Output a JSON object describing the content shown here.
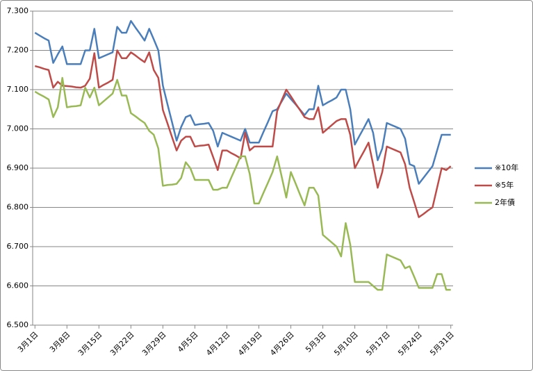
{
  "chart_data": {
    "type": "line",
    "categories": [
      "3月1日",
      null,
      null,
      null,
      null,
      null,
      null,
      "3月8日",
      null,
      null,
      null,
      null,
      null,
      null,
      "3月15日",
      null,
      null,
      null,
      null,
      null,
      null,
      "3月22日",
      null,
      null,
      null,
      null,
      null,
      null,
      "3月29日",
      null,
      null,
      null,
      null,
      null,
      null,
      "4月5日",
      null,
      null,
      null,
      null,
      null,
      null,
      "4月12日",
      null,
      null,
      null,
      null,
      null,
      null,
      "4月19日",
      null,
      null,
      null,
      null,
      null,
      null,
      "4月26日",
      null,
      null,
      null,
      null,
      null,
      null,
      "5月3日",
      null,
      null,
      null,
      null,
      null,
      null,
      "5月10日",
      null,
      null,
      null,
      null,
      null,
      null,
      "5月17日",
      null,
      null,
      null,
      null,
      null,
      null,
      "5月24日",
      null,
      null,
      null,
      null,
      null,
      null,
      "5月31日"
    ],
    "series": [
      {
        "name": "※10年",
        "color": "#4a7ebb",
        "values": [
          7.245,
          7.238,
          7.231,
          7.225,
          7.168,
          7.19,
          7.21,
          7.165,
          7.165,
          7.165,
          7.165,
          7.2,
          7.2,
          7.255,
          7.18,
          7.185,
          7.19,
          7.195,
          7.26,
          7.245,
          7.245,
          7.275,
          7.258,
          7.242,
          7.225,
          7.255,
          7.228,
          7.2,
          7.11,
          7.063,
          7.017,
          6.97,
          7.005,
          7.03,
          7.035,
          7.01,
          7.012,
          7.013,
          7.015,
          6.995,
          6.955,
          6.99,
          6.985,
          6.98,
          6.975,
          6.97,
          7.0,
          6.965,
          6.965,
          6.965,
          6.992,
          7.018,
          7.045,
          7.05,
          7.07,
          7.09,
          7.076,
          7.063,
          7.049,
          7.035,
          7.05,
          7.05,
          7.11,
          7.06,
          7.067,
          7.073,
          7.08,
          7.1,
          7.1,
          7.05,
          6.96,
          6.982,
          7.003,
          7.025,
          6.99,
          6.92,
          6.95,
          7.015,
          7.01,
          7.005,
          7.0,
          6.975,
          6.91,
          6.905,
          6.86,
          6.875,
          6.89,
          6.905,
          6.945,
          6.985,
          6.985,
          6.985
        ]
      },
      {
        "name": "※5年",
        "color": "#be4b48",
        "values": [
          7.16,
          7.157,
          7.153,
          7.15,
          7.105,
          7.12,
          7.11,
          7.109,
          7.108,
          7.106,
          7.105,
          7.11,
          7.128,
          7.193,
          7.105,
          7.112,
          7.118,
          7.125,
          7.2,
          7.18,
          7.18,
          7.195,
          7.187,
          7.178,
          7.17,
          7.195,
          7.15,
          7.13,
          7.048,
          7.014,
          6.979,
          6.945,
          6.97,
          6.98,
          6.98,
          6.955,
          6.957,
          6.958,
          6.96,
          6.928,
          6.895,
          6.945,
          6.945,
          6.938,
          6.932,
          6.925,
          6.99,
          6.945,
          6.955,
          6.955,
          6.955,
          6.955,
          6.955,
          7.045,
          7.073,
          7.1,
          7.083,
          7.065,
          7.048,
          7.03,
          7.025,
          7.025,
          7.055,
          6.99,
          7.0,
          7.01,
          7.02,
          7.025,
          7.025,
          6.985,
          6.9,
          6.922,
          6.943,
          6.965,
          6.91,
          6.85,
          6.89,
          6.955,
          6.95,
          6.945,
          6.94,
          6.91,
          6.85,
          6.813,
          6.775,
          6.783,
          6.792,
          6.8,
          6.85,
          6.9,
          6.895,
          6.905
        ]
      },
      {
        "name": "2年債",
        "color": "#98b954",
        "values": [
          7.095,
          7.088,
          7.082,
          7.075,
          7.03,
          7.055,
          7.13,
          7.055,
          7.057,
          7.058,
          7.06,
          7.105,
          7.08,
          7.105,
          7.06,
          7.07,
          7.08,
          7.09,
          7.125,
          7.085,
          7.085,
          7.04,
          7.032,
          7.023,
          7.015,
          6.995,
          6.985,
          6.95,
          6.855,
          6.857,
          6.858,
          6.86,
          6.875,
          6.915,
          6.9,
          6.87,
          6.87,
          6.87,
          6.87,
          6.845,
          6.845,
          6.85,
          6.85,
          6.877,
          6.903,
          6.93,
          6.93,
          6.885,
          6.81,
          6.81,
          6.837,
          6.863,
          6.89,
          6.93,
          6.878,
          6.825,
          6.89,
          6.862,
          6.833,
          6.805,
          6.85,
          6.85,
          6.83,
          6.73,
          6.72,
          6.71,
          6.7,
          6.675,
          6.76,
          6.705,
          6.61,
          6.61,
          6.61,
          6.61,
          6.6,
          6.59,
          6.59,
          6.68,
          6.675,
          6.67,
          6.665,
          6.645,
          6.65,
          6.623,
          6.595,
          6.595,
          6.595,
          6.595,
          6.63,
          6.63,
          6.59,
          6.59
        ]
      }
    ],
    "ylim": [
      6.5,
      7.3
    ],
    "yticks": [
      {
        "value": 6.5,
        "label": "6.500"
      },
      {
        "value": 6.6,
        "label": "6.600"
      },
      {
        "value": 6.7,
        "label": "6.700"
      },
      {
        "value": 6.8,
        "label": "6.800"
      },
      {
        "value": 6.9,
        "label": "6.900"
      },
      {
        "value": 7.0,
        "label": "7.000"
      },
      {
        "value": 7.1,
        "label": "7.100"
      },
      {
        "value": 7.2,
        "label": "7.200"
      },
      {
        "value": 7.3,
        "label": "7.300"
      }
    ],
    "grid": true,
    "legend": "right"
  }
}
